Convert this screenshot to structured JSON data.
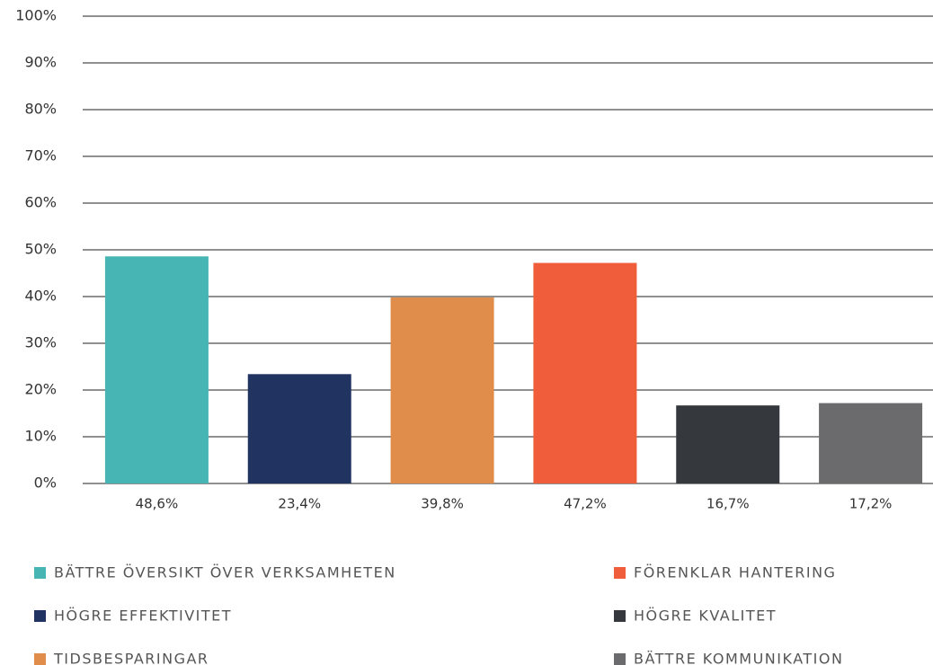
{
  "chart_data": {
    "type": "bar",
    "categories": [
      "BÄTTRE ÖVERSIKT ÖVER VERKSAMHETEN",
      "HÖGRE EFFEKTIVITET",
      "TIDSBESPARINGAR",
      "FÖRENKLAR HANTERING",
      "HÖGRE KVALITET",
      "BÄTTRE KOMMUNIKATION"
    ],
    "values": [
      48.6,
      23.4,
      39.8,
      47.2,
      16.7,
      17.2
    ],
    "value_labels": [
      "48,6%",
      "23,4%",
      "39,8%",
      "47,2%",
      "16,7%",
      "17,2%"
    ],
    "colors": [
      "#47b5b4",
      "#213461",
      "#e08c4a",
      "#f05d3b",
      "#35383c",
      "#6b6b6d"
    ],
    "ylim": [
      0,
      100
    ],
    "yticks": [
      {
        "value": 0,
        "label": "0%"
      },
      {
        "value": 10,
        "label": "10%"
      },
      {
        "value": 20,
        "label": "20%"
      },
      {
        "value": 30,
        "label": "30%"
      },
      {
        "value": 40,
        "label": "40%"
      },
      {
        "value": 50,
        "label": "50%"
      },
      {
        "value": 60,
        "label": "60%"
      },
      {
        "value": 70,
        "label": "70%"
      },
      {
        "value": 80,
        "label": "80%"
      },
      {
        "value": 90,
        "label": "90%"
      },
      {
        "value": 100,
        "label": "100%"
      }
    ],
    "grid": true,
    "legend": "bottom"
  }
}
